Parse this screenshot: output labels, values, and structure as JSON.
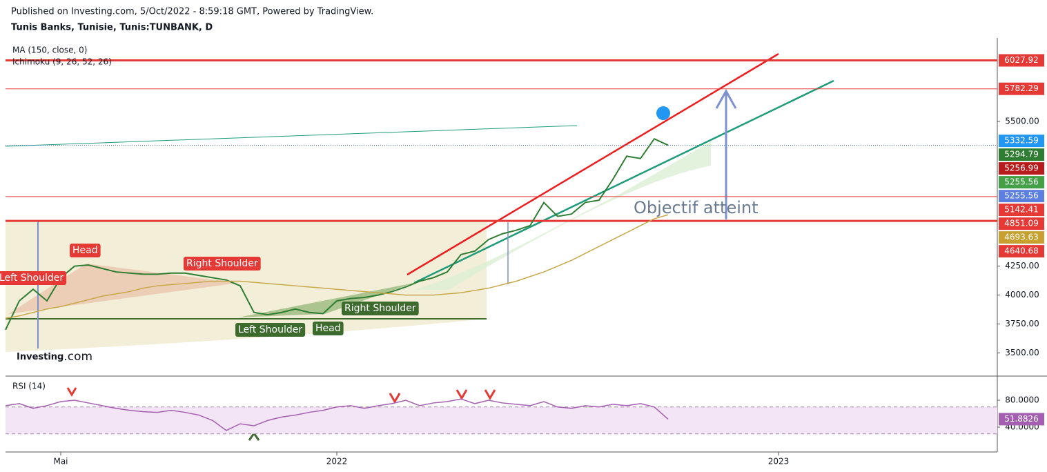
{
  "header": {
    "published": "Published on Investing.com, 5/Oct/2022 - 8:59:18 GMT, Powered by TradingView.",
    "symbol": "Tunis Banks, Tunisie, Tunis:TUNBANK, D"
  },
  "logo": {
    "brand": "Investing",
    "suffix": ".com"
  },
  "chart_data": [
    {
      "type": "line",
      "indicator": "Ichimoku (9, 26, 52, 26)",
      "categories": [
        null,
        null,
        null,
        null,
        "Mai",
        null,
        null,
        null,
        null,
        null,
        null,
        null,
        null,
        null,
        null,
        null,
        null,
        null,
        null,
        null,
        null,
        null,
        null,
        null,
        "2022",
        null,
        null,
        null,
        null,
        null,
        null,
        null,
        null,
        null,
        null,
        null,
        null,
        null,
        null,
        null,
        null,
        null,
        null,
        null,
        null,
        null,
        null,
        null,
        null,
        null,
        null,
        null,
        null,
        null,
        null,
        null,
        "2023",
        null,
        null,
        null,
        null,
        null,
        null,
        null,
        null,
        null,
        null,
        null,
        null,
        null,
        null,
        null
      ],
      "series": [
        {
          "color": "#2e7d32",
          "values": [
            3700,
            3950,
            4050,
            3950,
            4150,
            4250,
            4260,
            4230,
            4200,
            4190,
            4180,
            4180,
            4190,
            4190,
            4170,
            4150,
            4130,
            4080,
            3850,
            3830,
            3850,
            3880,
            3850,
            3840,
            3950,
            3970,
            3980,
            4000,
            4030,
            4070,
            4120,
            4150,
            4200,
            4350,
            4380,
            4480,
            4530,
            4560,
            4600,
            4800,
            4680,
            4700,
            4800,
            4820,
            5000,
            5200,
            5180,
            5350,
            5294.79,
            null,
            null,
            null,
            null,
            null,
            null,
            null,
            null,
            null,
            null,
            null,
            null,
            null,
            null,
            null,
            null,
            null,
            null,
            null,
            null,
            null,
            null,
            null
          ]
        },
        {
          "name": "MA (150, close, 0)",
          "color": "#c8a84b",
          "values": [
            3800,
            3820,
            3850,
            3880,
            3900,
            3930,
            3960,
            3990,
            4010,
            4030,
            4060,
            4080,
            4090,
            4100,
            4110,
            4120,
            4120,
            4120,
            4110,
            4100,
            4090,
            4080,
            4070,
            4060,
            4050,
            4040,
            4030,
            4020,
            4010,
            4000,
            4000,
            4000,
            4010,
            4020,
            4040,
            4060,
            4090,
            4120,
            4160,
            4200,
            4250,
            4300,
            4360,
            4420,
            4480,
            4540,
            4600,
            4660,
            4693.63,
            null,
            null,
            null,
            null,
            null,
            null,
            null,
            null,
            null,
            null,
            null,
            null,
            null,
            null,
            null,
            null,
            null,
            null,
            null,
            null,
            null,
            null,
            null
          ]
        }
      ],
      "ylim": [
        3300,
        6180
      ],
      "yticks": [
        {
          "value": 3500,
          "label": "3500.00"
        },
        {
          "value": 3750,
          "label": "3750.00"
        },
        {
          "value": 4000,
          "label": "4000.00"
        },
        {
          "value": 4250,
          "label": "4250.00"
        },
        {
          "value": 5500,
          "label": "5500.00"
        }
      ],
      "last_close": 5294.79,
      "price_labels": [
        {
          "value": 6027.92,
          "color": "#e53935",
          "line": "thick"
        },
        {
          "value": 5782.29,
          "color": "#e53935",
          "line": "thin"
        },
        {
          "value": 5332.59,
          "color": "#2196f3"
        },
        {
          "value": 5294.79,
          "color": "#2e7d32"
        },
        {
          "value": 5256.99,
          "color": "#b71c1c"
        },
        {
          "value": 5255.56,
          "color": "#43a047"
        },
        {
          "value": 5255.56,
          "color": "#5c7fe0"
        },
        {
          "value": 5142.41,
          "color": "#e53935"
        },
        {
          "value": 4851.09,
          "color": "#e53935",
          "line": "thin"
        },
        {
          "value": 4693.63,
          "color": "#c8a030"
        },
        {
          "value": 4640.68,
          "color": "#e53935",
          "line": "thick"
        }
      ],
      "annotations": [
        {
          "text": "Head",
          "color": "#e53935"
        },
        {
          "text": "Right Shoulder",
          "color": "#e53935"
        },
        {
          "text": "Left Shoulder",
          "color": "#e53935"
        },
        {
          "text": "Left Shoulder",
          "color": "#3d6b2e"
        },
        {
          "text": "Head",
          "color": "#3d6b2e"
        },
        {
          "text": "Right Shoulder",
          "color": "#3d6b2e"
        },
        {
          "text": "Objectif atteint",
          "color": "#6a7a90"
        }
      ]
    },
    {
      "type": "line",
      "series": [
        {
          "name": "RSI (14)",
          "color": "#a45fb0",
          "values": [
            72,
            75,
            68,
            72,
            78,
            80,
            76,
            72,
            68,
            65,
            63,
            62,
            65,
            62,
            58,
            50,
            35,
            45,
            42,
            50,
            55,
            58,
            62,
            65,
            70,
            72,
            68,
            72,
            75,
            80,
            72,
            76,
            78,
            82,
            75,
            80,
            76,
            74,
            72,
            78,
            70,
            68,
            72,
            70,
            74,
            72,
            75,
            70,
            51.8826,
            null,
            null,
            null,
            null,
            null,
            null,
            null,
            null,
            null,
            null,
            null,
            null,
            null,
            null,
            null,
            null,
            null,
            null,
            null,
            null,
            null,
            null,
            null
          ]
        }
      ],
      "ylim": [
        3,
        116
      ],
      "yticks": [
        {
          "value": 80,
          "label": "80.0000"
        },
        {
          "value": 40,
          "label": "40.0000"
        }
      ],
      "hlines": [
        70,
        30
      ]
    }
  ]
}
